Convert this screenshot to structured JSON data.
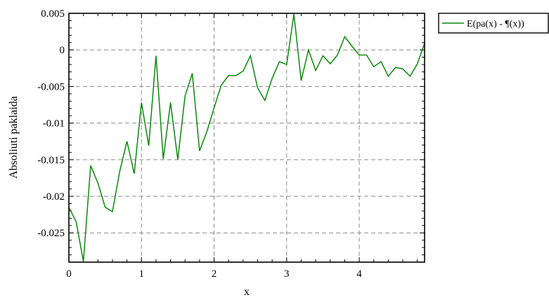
{
  "chart_data": {
    "type": "line",
    "xlabel": "x",
    "ylabel": "Absoliuti paklaida",
    "xlim": [
      0,
      4.9
    ],
    "ylim": [
      -0.029,
      0.005
    ],
    "x_ticks": [
      0,
      1,
      2,
      3,
      4
    ],
    "x_tick_labels": [
      "0",
      "1",
      "2",
      "3",
      "4"
    ],
    "y_ticks": [
      0.005,
      0,
      -0.005,
      -0.01,
      -0.015,
      -0.02,
      -0.025
    ],
    "y_tick_labels": [
      "0.005",
      "0",
      "-0.005",
      "-0.01",
      "-0.015",
      "-0.02",
      "-0.025"
    ],
    "grid": true,
    "legend_position": "top-right, outside plot",
    "series": [
      {
        "name": "E(pa(x) - ¶(x))",
        "color": "#0a8a0a",
        "x": [
          0,
          0.1,
          0.2,
          0.3,
          0.4,
          0.5,
          0.6,
          0.7,
          0.8,
          0.9,
          1.0,
          1.1,
          1.2,
          1.3,
          1.4,
          1.5,
          1.6,
          1.7,
          1.8,
          1.9,
          2.0,
          2.1,
          2.2,
          2.3,
          2.4,
          2.5,
          2.6,
          2.7,
          2.8,
          2.9,
          3.0,
          3.1,
          3.2,
          3.3,
          3.4,
          3.5,
          3.6,
          3.7,
          3.8,
          3.9,
          4.0,
          4.1,
          4.2,
          4.3,
          4.4,
          4.5,
          4.6,
          4.7,
          4.8,
          4.9
        ],
        "y": [
          -0.0215,
          -0.0235,
          -0.0289,
          -0.0158,
          -0.0182,
          -0.0215,
          -0.0221,
          -0.0166,
          -0.0125,
          -0.0169,
          -0.0072,
          -0.0131,
          -0.0008,
          -0.0149,
          -0.0072,
          -0.015,
          -0.0063,
          -0.0032,
          -0.0138,
          -0.0112,
          -0.0079,
          -0.0048,
          -0.0035,
          -0.0035,
          -0.0029,
          -0.0008,
          -0.0052,
          -0.0069,
          -0.0039,
          -0.0016,
          -0.002,
          0.0049,
          -0.0042,
          0.0,
          -0.0028,
          -0.0008,
          -0.0019,
          -0.0007,
          0.0018,
          0.0005,
          -0.0007,
          -0.0007,
          -0.0023,
          -0.0016,
          -0.0036,
          -0.0024,
          -0.0026,
          -0.0036,
          -0.0019,
          0.0009
        ]
      }
    ]
  }
}
